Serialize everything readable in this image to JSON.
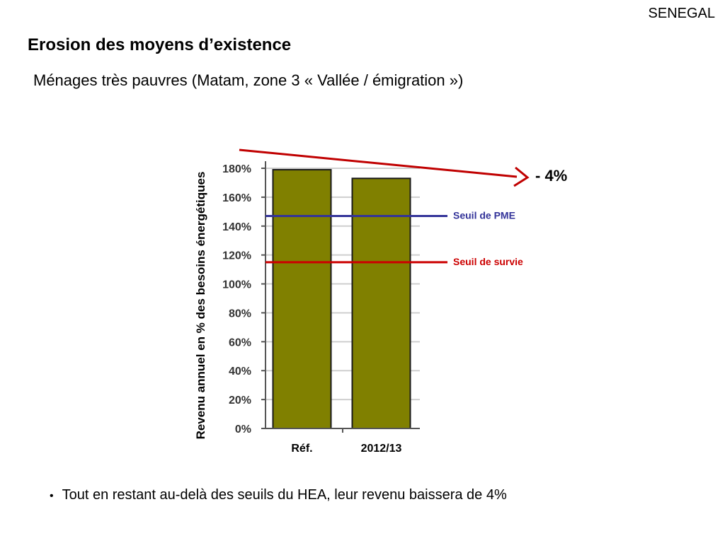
{
  "header": {
    "country": "SENEGAL",
    "title": "Erosion des moyens d’existence",
    "subtitle": "Ménages très pauvres (Matam, zone 3 « Vallée / émigration »)"
  },
  "chart_data": {
    "type": "bar",
    "categories": [
      "Réf.",
      "2012/13"
    ],
    "values": [
      179,
      173
    ],
    "ylabel": "Revenu annuel en %  des besoins énergétiques",
    "ylim": [
      0,
      180
    ],
    "yticks": [
      0,
      20,
      40,
      60,
      80,
      100,
      120,
      140,
      160,
      180
    ],
    "ytick_labels": [
      "0%",
      "20%",
      "40%",
      "60%",
      "80%",
      "100%",
      "120%",
      "140%",
      "160%",
      "180%"
    ],
    "grid": true,
    "bar_color": "#808000",
    "thresholds": [
      {
        "label": "Seuil de PME",
        "value": 147,
        "color": "#333399"
      },
      {
        "label": "Seuil de survie",
        "value": 115,
        "color": "#cc0000"
      }
    ],
    "annotation": {
      "text": "-  4%",
      "color": "#c00000"
    }
  },
  "footer": {
    "bullet": "Tout en restant au-delà des seuils du HEA, leur revenu baissera de 4%"
  }
}
